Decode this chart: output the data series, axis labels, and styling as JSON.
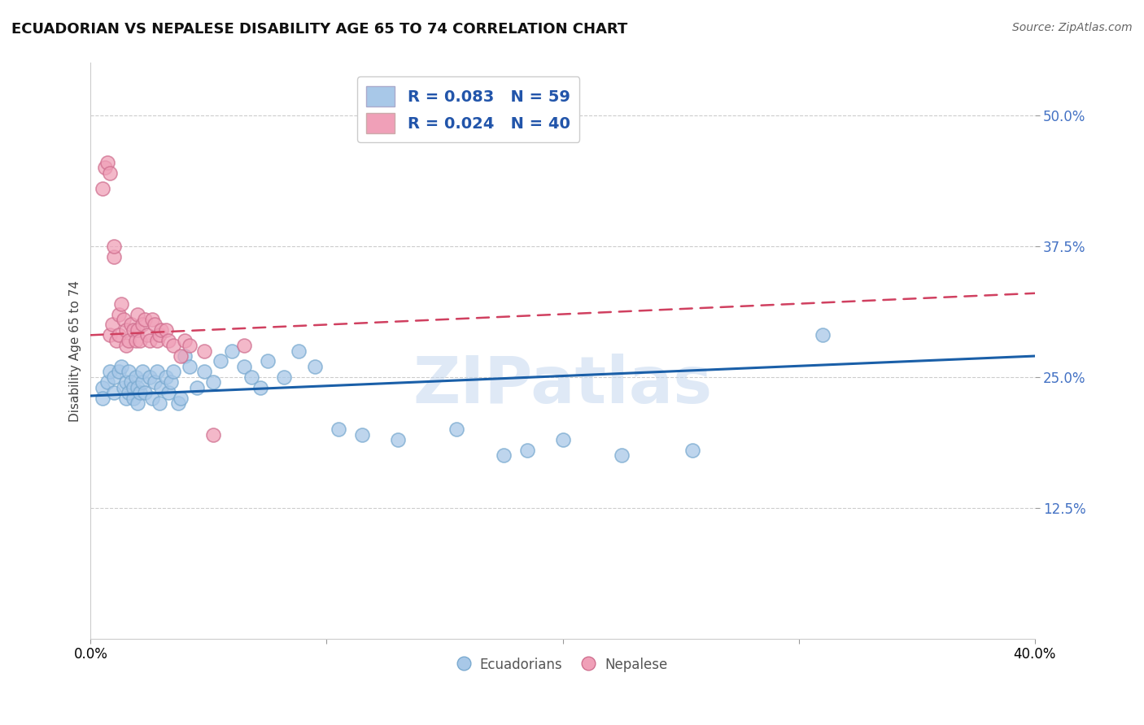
{
  "title": "ECUADORIAN VS NEPALESE DISABILITY AGE 65 TO 74 CORRELATION CHART",
  "source": "Source: ZipAtlas.com",
  "ylabel": "Disability Age 65 to 74",
  "xmin": 0.0,
  "xmax": 0.4,
  "ymin": 0.0,
  "ymax": 0.55,
  "yticks": [
    0.125,
    0.25,
    0.375,
    0.5
  ],
  "ytick_labels": [
    "12.5%",
    "25.0%",
    "37.5%",
    "50.0%"
  ],
  "legend_r1": "R = 0.083",
  "legend_n1": "N = 59",
  "legend_r2": "R = 0.024",
  "legend_n2": "N = 40",
  "blue_color": "#a8c8e8",
  "pink_color": "#f0a0b8",
  "blue_line_color": "#1a5fa8",
  "pink_line_color": "#d04060",
  "blue_edge_color": "#7aaad0",
  "pink_edge_color": "#d07090",
  "blue_scatter_x": [
    0.005,
    0.005,
    0.007,
    0.008,
    0.01,
    0.01,
    0.012,
    0.013,
    0.014,
    0.015,
    0.015,
    0.016,
    0.016,
    0.017,
    0.018,
    0.018,
    0.019,
    0.02,
    0.02,
    0.021,
    0.022,
    0.022,
    0.023,
    0.025,
    0.026,
    0.027,
    0.028,
    0.029,
    0.03,
    0.032,
    0.033,
    0.034,
    0.035,
    0.037,
    0.038,
    0.04,
    0.042,
    0.045,
    0.048,
    0.052,
    0.055,
    0.06,
    0.065,
    0.068,
    0.072,
    0.075,
    0.082,
    0.088,
    0.095,
    0.105,
    0.115,
    0.13,
    0.155,
    0.175,
    0.185,
    0.2,
    0.225,
    0.255,
    0.31
  ],
  "blue_scatter_y": [
    0.24,
    0.23,
    0.245,
    0.255,
    0.235,
    0.25,
    0.255,
    0.26,
    0.24,
    0.23,
    0.245,
    0.255,
    0.235,
    0.245,
    0.24,
    0.23,
    0.25,
    0.225,
    0.24,
    0.235,
    0.245,
    0.255,
    0.235,
    0.25,
    0.23,
    0.245,
    0.255,
    0.225,
    0.24,
    0.25,
    0.235,
    0.245,
    0.255,
    0.225,
    0.23,
    0.27,
    0.26,
    0.24,
    0.255,
    0.245,
    0.265,
    0.275,
    0.26,
    0.25,
    0.24,
    0.265,
    0.25,
    0.275,
    0.26,
    0.2,
    0.195,
    0.19,
    0.2,
    0.175,
    0.18,
    0.19,
    0.175,
    0.18,
    0.29
  ],
  "pink_scatter_x": [
    0.005,
    0.006,
    0.007,
    0.008,
    0.008,
    0.009,
    0.01,
    0.01,
    0.011,
    0.012,
    0.012,
    0.013,
    0.014,
    0.015,
    0.015,
    0.016,
    0.017,
    0.018,
    0.019,
    0.02,
    0.02,
    0.021,
    0.022,
    0.023,
    0.024,
    0.025,
    0.026,
    0.027,
    0.028,
    0.029,
    0.03,
    0.032,
    0.033,
    0.035,
    0.038,
    0.04,
    0.042,
    0.048,
    0.052,
    0.065
  ],
  "pink_scatter_y": [
    0.43,
    0.45,
    0.455,
    0.445,
    0.29,
    0.3,
    0.365,
    0.375,
    0.285,
    0.29,
    0.31,
    0.32,
    0.305,
    0.28,
    0.295,
    0.285,
    0.3,
    0.295,
    0.285,
    0.295,
    0.31,
    0.285,
    0.3,
    0.305,
    0.29,
    0.285,
    0.305,
    0.3,
    0.285,
    0.29,
    0.295,
    0.295,
    0.285,
    0.28,
    0.27,
    0.285,
    0.28,
    0.275,
    0.195,
    0.28
  ],
  "blue_trendline_x": [
    0.0,
    0.4
  ],
  "blue_trendline_y": [
    0.232,
    0.27
  ],
  "pink_trendline_x": [
    0.0,
    0.4
  ],
  "pink_trendline_y": [
    0.29,
    0.33
  ]
}
